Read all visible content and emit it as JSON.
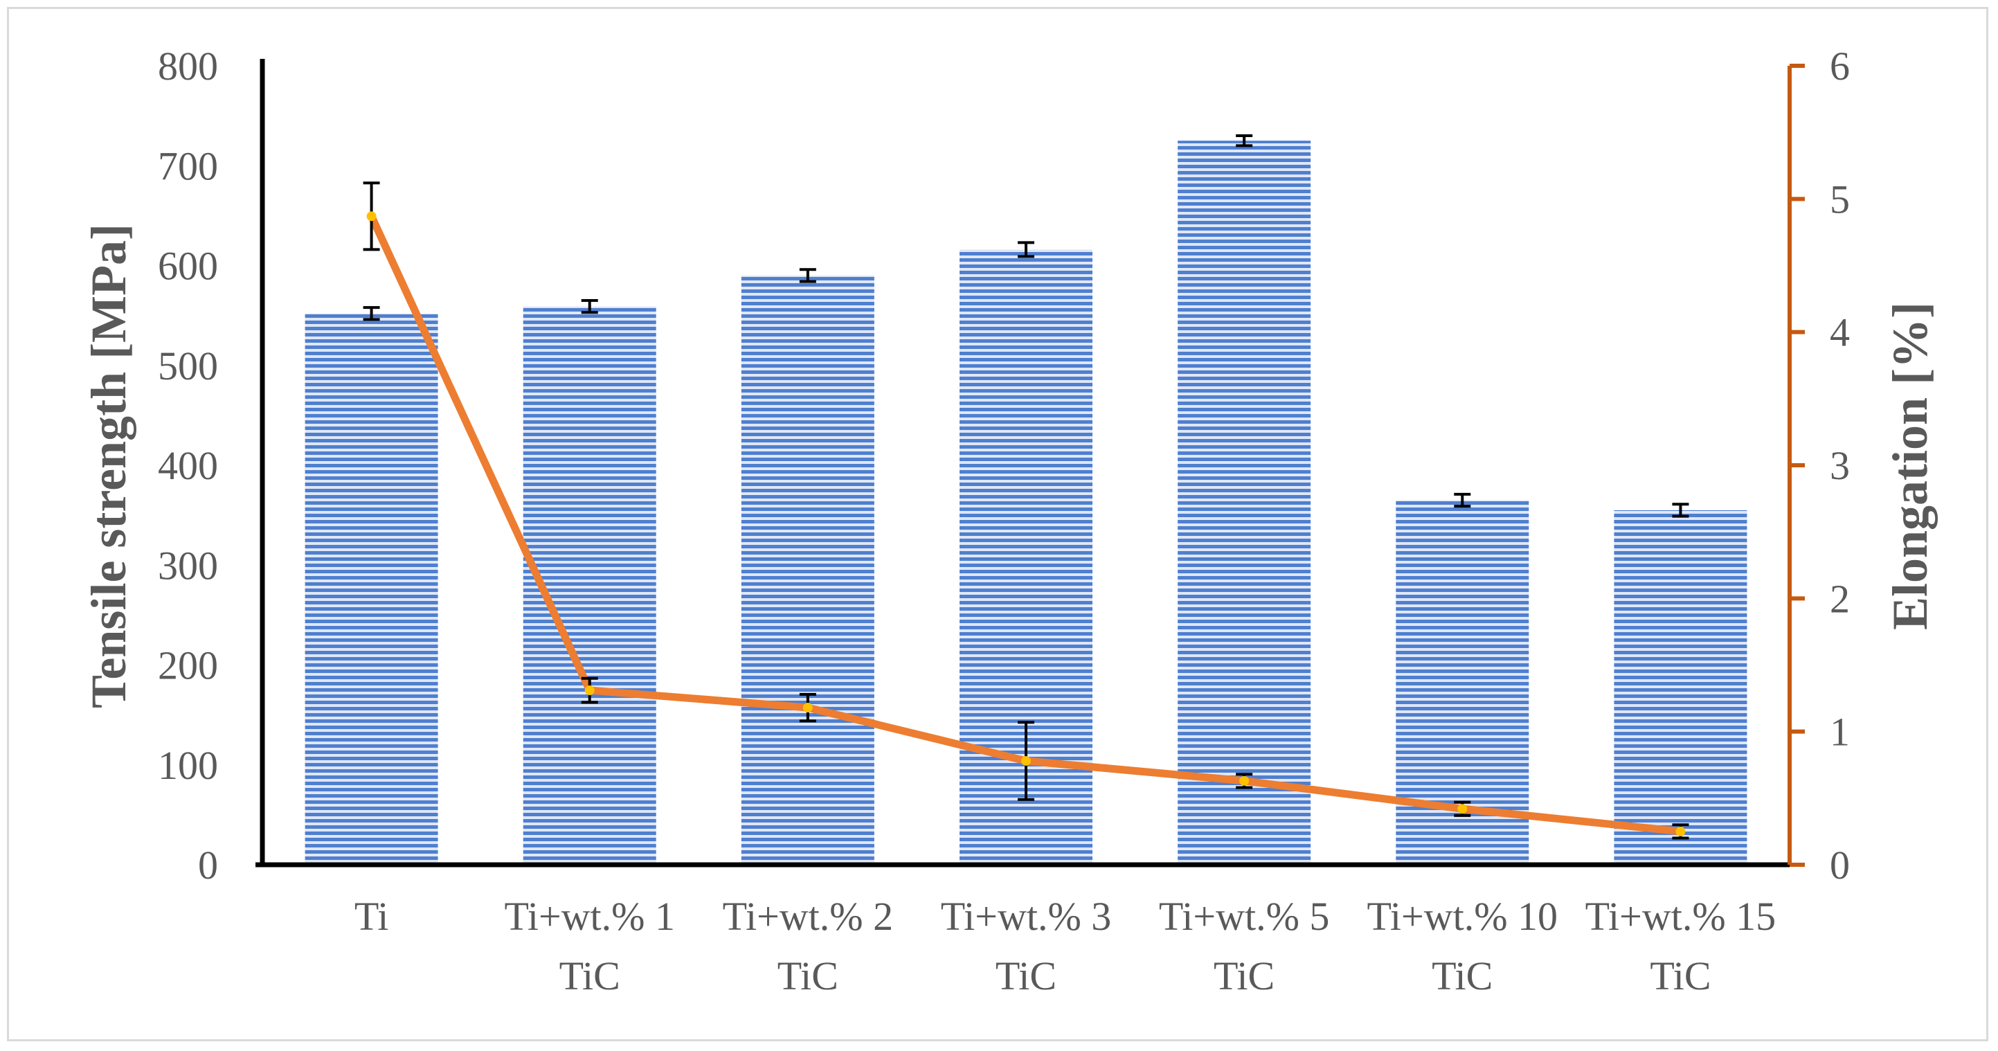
{
  "chart_data": {
    "type": "bar",
    "categories": [
      [
        "Ti"
      ],
      [
        "Ti+wt.% 1",
        "TiC"
      ],
      [
        "Ti+wt.% 2",
        "TiC"
      ],
      [
        "Ti+wt.% 3",
        "TiC"
      ],
      [
        "Ti+wt.% 5",
        "TiC"
      ],
      [
        "Ti+wt.% 10",
        "TiC"
      ],
      [
        "Ti+wt.% 15",
        "TiC"
      ]
    ],
    "ylabel": "Tensile strength [MPa]",
    "y2label": "Elongation [%]",
    "ylim": [
      0,
      800
    ],
    "y2lim": [
      0,
      6
    ],
    "yticks": [
      0,
      100,
      200,
      300,
      400,
      500,
      600,
      700,
      800
    ],
    "y2ticks": [
      0,
      1,
      2,
      3,
      4,
      5,
      6
    ],
    "series": [
      {
        "type": "bar",
        "axis": "left",
        "values": [
          552,
          559,
          590,
          616,
          725,
          365,
          355
        ],
        "errors": [
          6,
          6,
          6,
          7,
          5,
          6,
          6
        ],
        "color": "#4472c4"
      },
      {
        "type": "line",
        "axis": "right",
        "values": [
          4.87,
          1.31,
          1.18,
          0.78,
          0.63,
          0.42,
          0.25
        ],
        "errors": [
          0.25,
          0.09,
          0.1,
          0.29,
          0.05,
          0.05,
          0.05
        ],
        "color": "#ed7d31",
        "axis_color": "#c55a11",
        "marker_color": "#ffc000"
      }
    ],
    "grid": false,
    "legend": "none"
  }
}
